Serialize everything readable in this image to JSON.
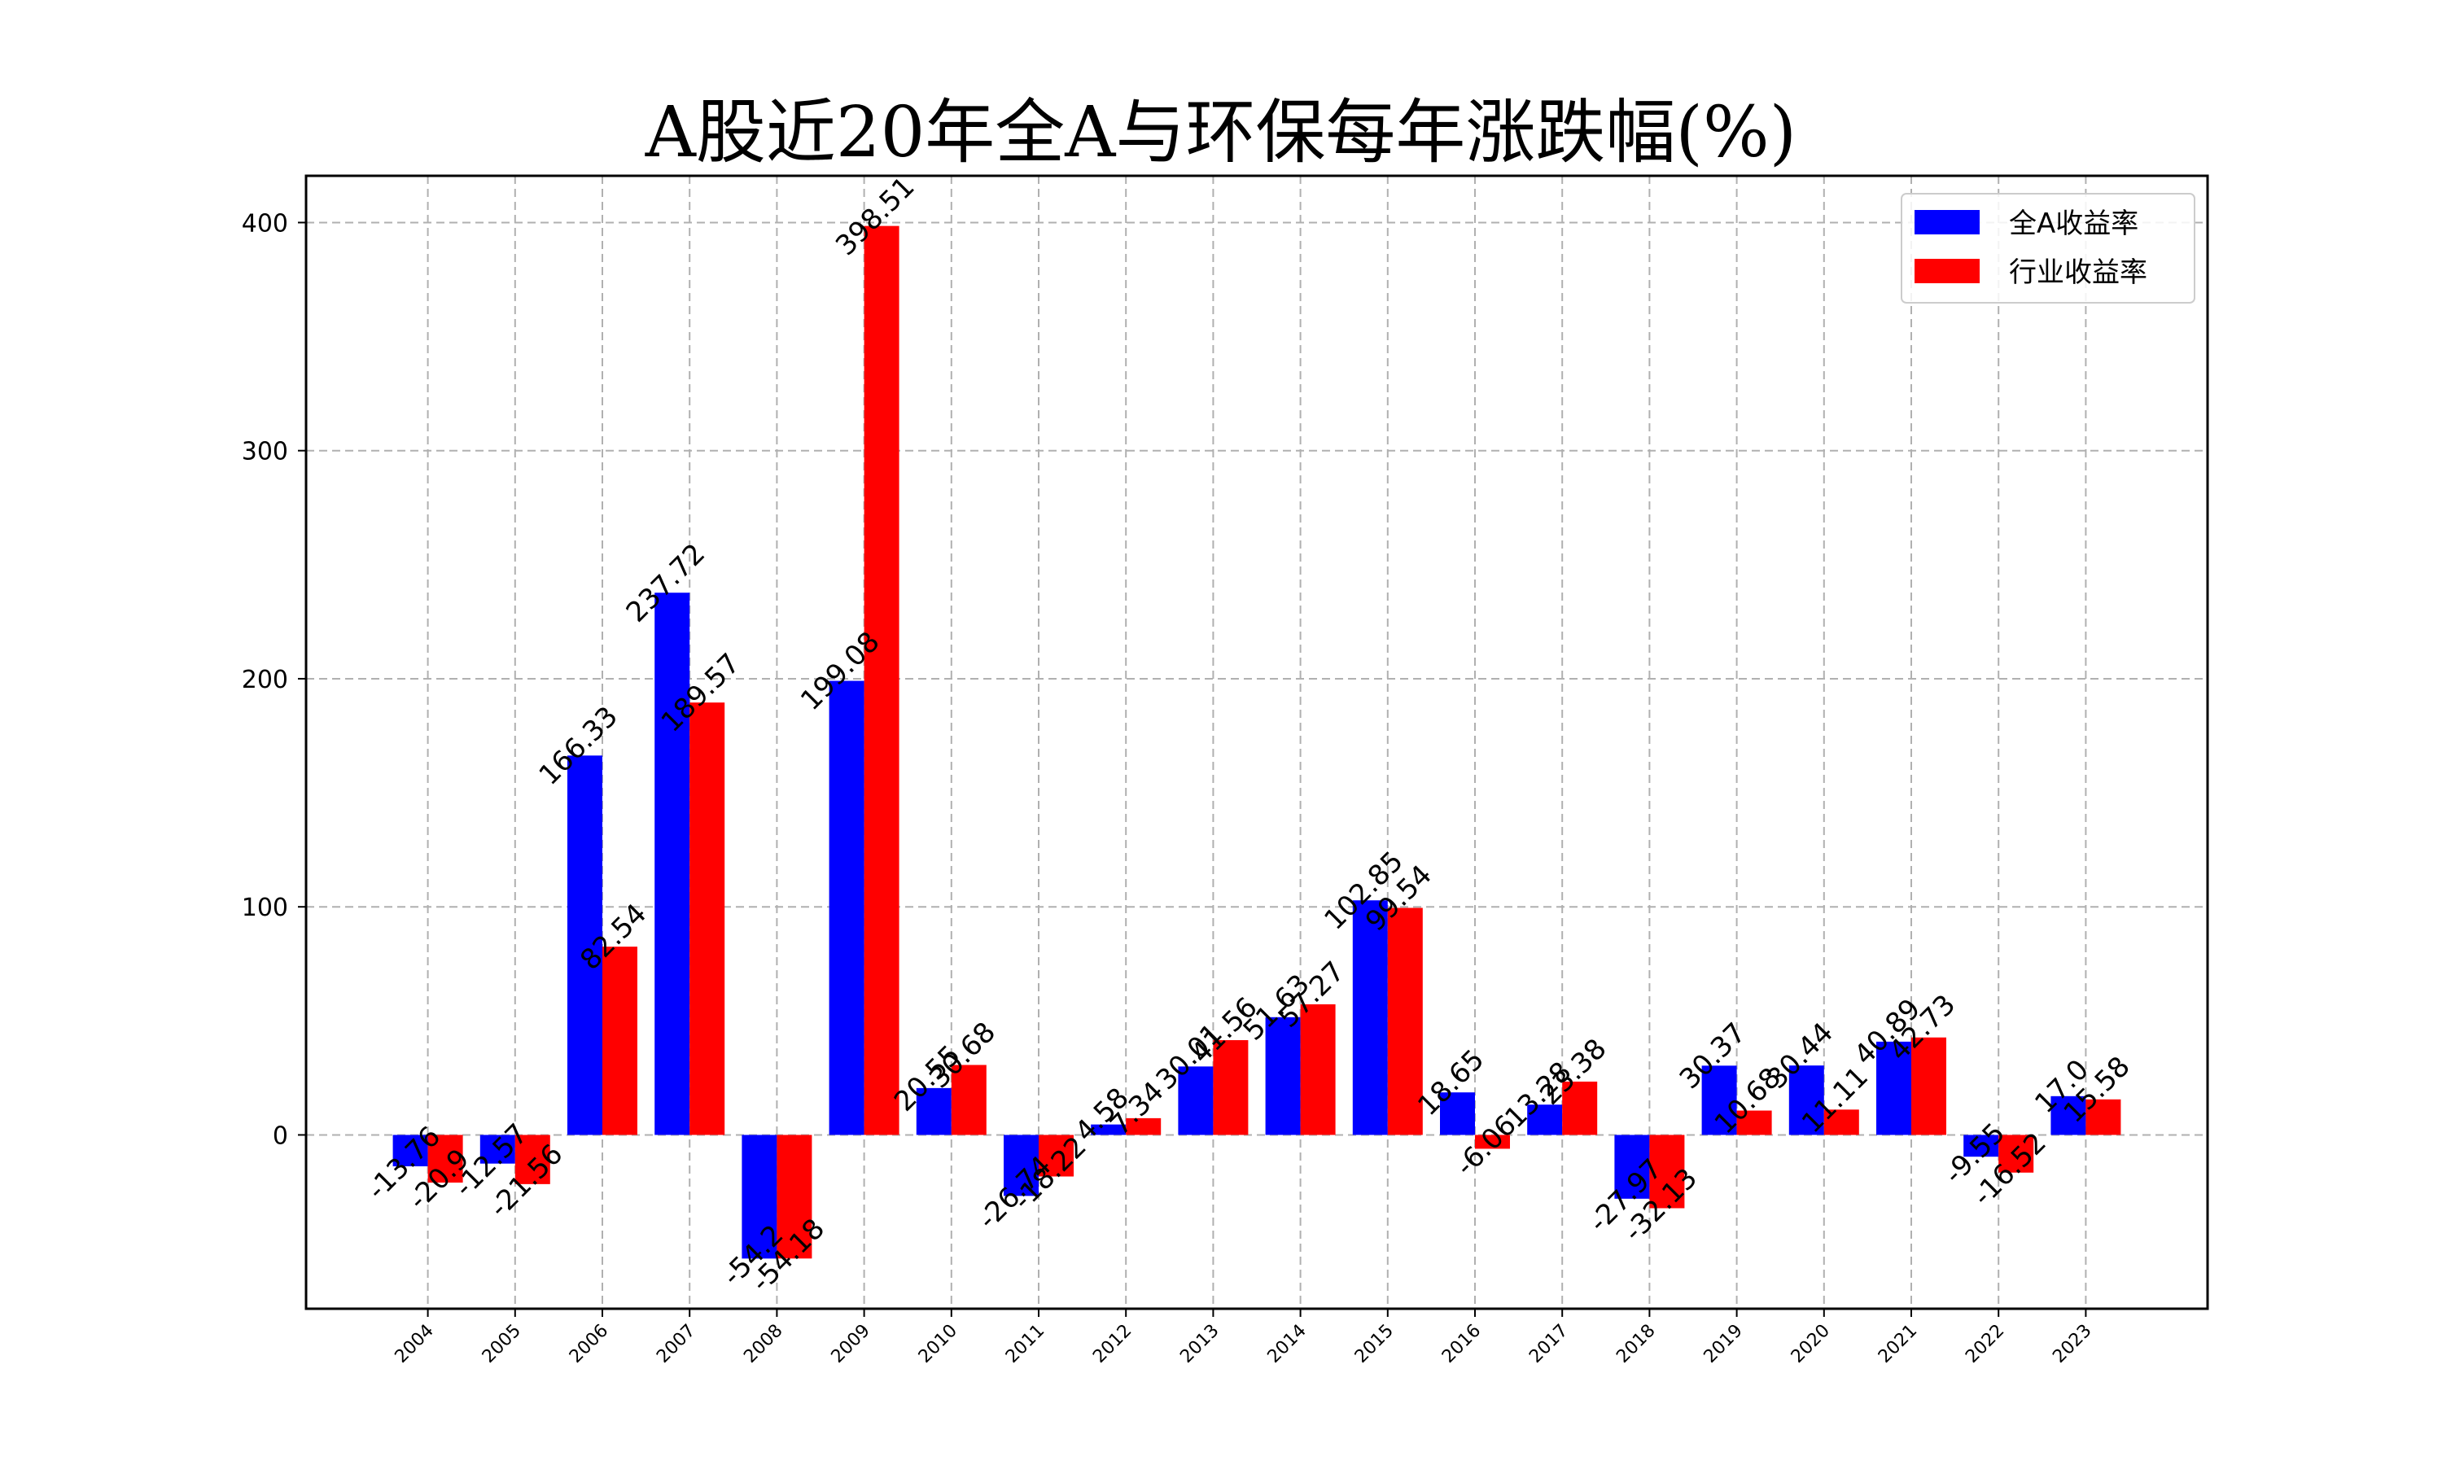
{
  "chart_data": {
    "type": "bar",
    "title": "A股近20年全A与环保每年涨跌幅(%)",
    "xlabel": "",
    "ylabel": "",
    "categories": [
      "2004",
      "2005",
      "2006",
      "2007",
      "2008",
      "2009",
      "2010",
      "2011",
      "2012",
      "2013",
      "2014",
      "2015",
      "2016",
      "2017",
      "2018",
      "2019",
      "2020",
      "2021",
      "2022",
      "2023"
    ],
    "series": [
      {
        "name": "全A收益率",
        "color": "#0000ff",
        "values": [
          -13.76,
          -12.57,
          166.33,
          237.72,
          -54.2,
          199.08,
          20.55,
          -26.74,
          4.58,
          30.01,
          51.63,
          102.85,
          18.65,
          13.28,
          -27.97,
          30.37,
          30.44,
          40.89,
          -9.55,
          17.0
        ],
        "labels": [
          "-13.76",
          "-12.57",
          "166.33",
          "237.72",
          "-54.2",
          "199.08",
          "20.55",
          "-26.74",
          "4.58",
          "30.01",
          "51.63",
          "102.85",
          "18.65",
          "13.28",
          "-27.97",
          "30.37",
          "30.44",
          "40.89",
          "-9.55",
          "17.0"
        ]
      },
      {
        "name": "行业收益率",
        "color": "#ff0000",
        "values": [
          -20.9,
          -21.56,
          82.54,
          189.57,
          -54.18,
          398.51,
          30.68,
          -18.22,
          7.34,
          41.56,
          57.27,
          99.54,
          -6.06,
          23.38,
          -32.13,
          10.68,
          11.11,
          42.73,
          -16.52,
          15.58
        ],
        "labels": [
          "-20.9",
          "-21.56",
          "82.54",
          "189.57",
          "-54.18",
          "398.51",
          "30.68",
          "-18.22",
          "7.34",
          "41.56",
          "57.27",
          "99.54",
          "-6.06",
          "23.38",
          "-32.13",
          "10.68",
          "11.11",
          "42.73",
          "-16.52",
          "15.58"
        ]
      }
    ],
    "yticks": [
      0,
      100,
      200,
      300,
      400
    ],
    "ylim": [
      -76.2,
      420.5
    ],
    "grid": true,
    "legend_position": "top-right"
  }
}
